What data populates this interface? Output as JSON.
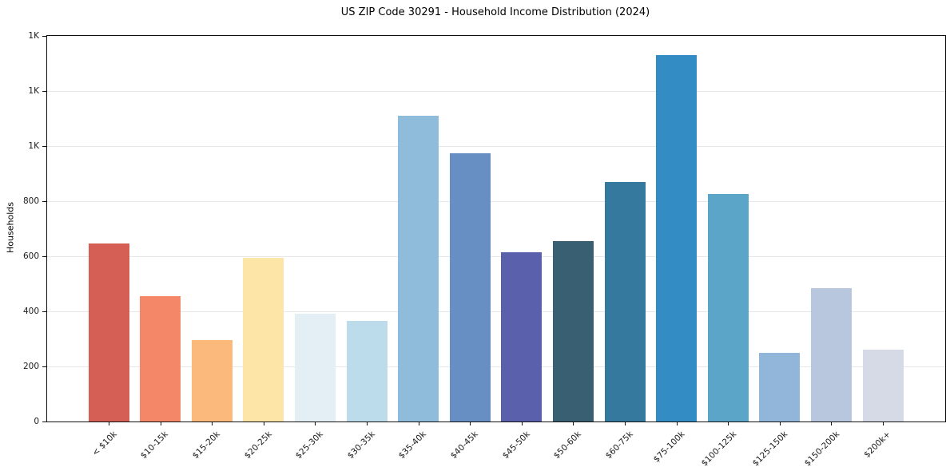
{
  "chart_data": {
    "type": "bar",
    "title": "US ZIP Code 30291 - Household Income Distribution (2024)",
    "xlabel": "",
    "ylabel": "Households",
    "ylim": [
      0,
      1400
    ],
    "grid": "horizontal",
    "legend": "none",
    "background_color": "#ffffff",
    "gridline_color": "#e7e7e7",
    "spine_color": "#0f0f0f",
    "categories": [
      "< $10k",
      "$10-15k",
      "$15-20k",
      "$20-25k",
      "$25-30k",
      "$30-35k",
      "$35-40k",
      "$40-45k",
      "$45-50k",
      "$50-60k",
      "$60-75k",
      "$75-100k",
      "$100-125k",
      "$125-150k",
      "$150-200k",
      "$200k+"
    ],
    "values": [
      645,
      455,
      295,
      595,
      390,
      365,
      1110,
      975,
      615,
      655,
      870,
      1330,
      825,
      250,
      485,
      260
    ],
    "bar_colors": [
      "#d65f55",
      "#f48768",
      "#fbb97c",
      "#fde5a7",
      "#e3eff5",
      "#bcdcec",
      "#90bcdc",
      "#688fc3",
      "#5a60ab",
      "#385f72",
      "#357a9e",
      "#338cc3",
      "#5ba5c8",
      "#92b6da",
      "#b8c6de",
      "#d6d9e6"
    ],
    "yticks": [
      {
        "value": 0,
        "label": "0"
      },
      {
        "value": 200,
        "label": "200"
      },
      {
        "value": 400,
        "label": "400"
      },
      {
        "value": 600,
        "label": "600"
      },
      {
        "value": 800,
        "label": "800"
      },
      {
        "value": 1000,
        "label": "1K"
      },
      {
        "value": 1200,
        "label": "1K"
      },
      {
        "value": 1400,
        "label": "1K"
      }
    ]
  }
}
